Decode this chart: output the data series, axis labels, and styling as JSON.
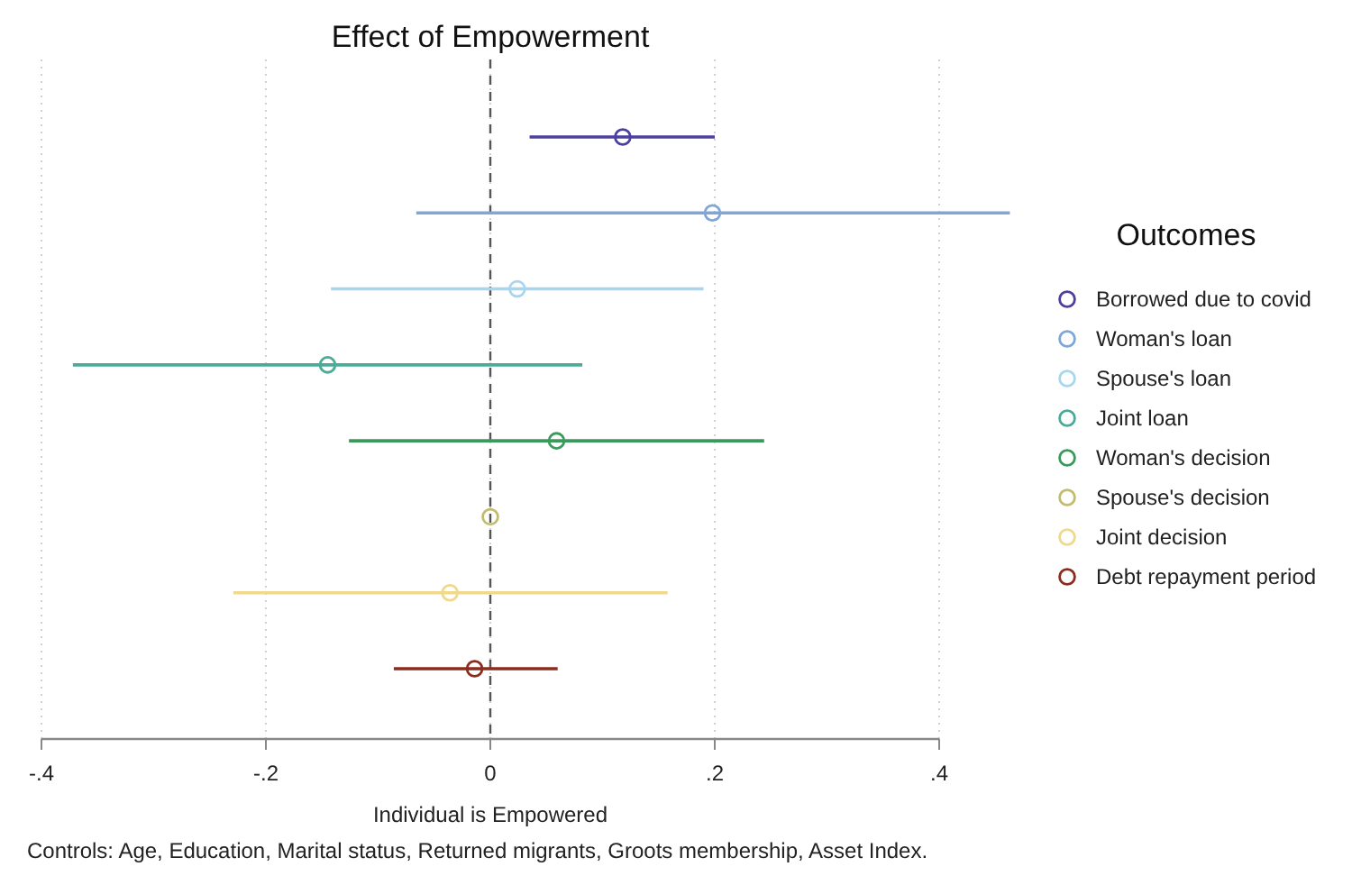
{
  "chart_data": {
    "type": "scatter",
    "orientation": "horizontal",
    "title": "Effect of Empowerment",
    "xlabel": "Individual is Empowered",
    "legend_title": "Outcomes",
    "legend": "right",
    "grid": "x",
    "marker": "circle",
    "categories": [
      null,
      null,
      null,
      null,
      null,
      null,
      null,
      null
    ],
    "xlim": [
      -0.4,
      0.4
    ],
    "xticks": [
      {
        "value": -0.4,
        "label": "-.4"
      },
      {
        "value": -0.2,
        "label": "-.2"
      },
      0,
      {
        "value": 0.2,
        "label": ".2"
      },
      {
        "value": 0.4,
        "label": ".4"
      }
    ],
    "ref_lines": [
      {
        "axis": "x",
        "value": 0,
        "color": "#555555",
        "line_style": "dashed"
      }
    ],
    "annotations": [
      "Controls: Age, Education, Marital status, Returned migrants, Groots membership, Asset Index."
    ],
    "series": [
      {
        "name": "Borrowed due to covid",
        "color": "#4b3fa0",
        "values": [
          0.118,
          null,
          null,
          null,
          null,
          null,
          null,
          null
        ],
        "errors": [
          [
            0.035,
            0.2
          ],
          null,
          null,
          null,
          null,
          null,
          null,
          null
        ]
      },
      {
        "name": "Woman's loan",
        "color": "#7ea6d8",
        "values": [
          null,
          0.198,
          null,
          null,
          null,
          null,
          null,
          null
        ],
        "errors": [
          null,
          [
            -0.066,
            0.463
          ],
          null,
          null,
          null,
          null,
          null,
          null
        ]
      },
      {
        "name": "Spouse's loan",
        "color": "#a6d6f0",
        "values": [
          null,
          null,
          0.024,
          null,
          null,
          null,
          null,
          null
        ],
        "errors": [
          null,
          null,
          [
            -0.142,
            0.19
          ],
          null,
          null,
          null,
          null,
          null
        ]
      },
      {
        "name": "Joint loan",
        "color": "#4aab98",
        "values": [
          null,
          null,
          null,
          -0.145,
          null,
          null,
          null,
          null
        ],
        "errors": [
          null,
          null,
          null,
          [
            -0.372,
            0.082
          ],
          null,
          null,
          null,
          null
        ]
      },
      {
        "name": "Woman's decision",
        "color": "#3a9a5c",
        "values": [
          null,
          null,
          null,
          null,
          0.059,
          null,
          null,
          null
        ],
        "errors": [
          null,
          null,
          null,
          null,
          [
            -0.126,
            0.244
          ],
          null,
          null,
          null
        ]
      },
      {
        "name": "Spouse's decision",
        "color": "#c2bd6e",
        "values": [
          null,
          null,
          null,
          null,
          null,
          0,
          null,
          null
        ]
      },
      {
        "name": "Joint decision",
        "color": "#f0d98c",
        "values": [
          null,
          null,
          null,
          null,
          null,
          null,
          -0.036,
          null
        ],
        "errors": [
          null,
          null,
          null,
          null,
          null,
          null,
          [
            -0.229,
            0.158
          ],
          null
        ]
      },
      {
        "name": "Debt repayment period",
        "color": "#8b2c1c",
        "values": [
          null,
          null,
          null,
          null,
          null,
          null,
          null,
          -0.014
        ],
        "errors": [
          null,
          null,
          null,
          null,
          null,
          null,
          null,
          [
            -0.086,
            0.06
          ]
        ]
      }
    ]
  }
}
